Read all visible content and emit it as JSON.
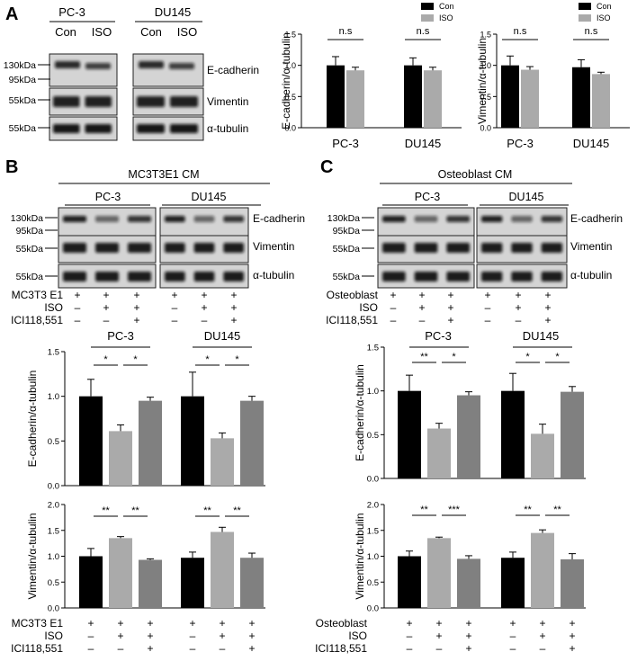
{
  "panels": {
    "A": "A",
    "B": "B",
    "C": "C"
  },
  "blot_A": {
    "cell_lines": [
      "PC-3",
      "DU145"
    ],
    "lanes": [
      "Con",
      "ISO",
      "Con",
      "ISO"
    ],
    "markers": [
      "130kDa",
      "95kDa",
      "55kDa",
      "55kDa"
    ],
    "proteins": [
      "E-cadherin",
      "Vimentin",
      "α-tubulin"
    ]
  },
  "blot_B": {
    "header": "MC3T3E1 CM",
    "cell_lines": [
      "PC-3",
      "DU145"
    ],
    "markers": [
      "130kDa",
      "95kDa",
      "55kDa",
      "55kDa"
    ],
    "proteins": [
      "E-cadherin",
      "Vimentin",
      "α-tubulin"
    ],
    "conditions": [
      {
        "label": "MC3T3 E1",
        "signs": [
          "+",
          "+",
          "+",
          "+",
          "+",
          "+"
        ]
      },
      {
        "label": "ISO",
        "signs": [
          "–",
          "+",
          "+",
          "–",
          "+",
          "+"
        ]
      },
      {
        "label": "ICI118,551",
        "signs": [
          "–",
          "–",
          "+",
          "–",
          "–",
          "+"
        ]
      }
    ]
  },
  "blot_C": {
    "header": "Osteoblast CM",
    "cell_lines": [
      "PC-3",
      "DU145"
    ],
    "markers": [
      "130kDa",
      "95kDa",
      "55kDa",
      "55kDa"
    ],
    "proteins": [
      "E-cadherin",
      "Vimentin",
      "α-tubulin"
    ],
    "conditions": [
      {
        "label": "Osteoblast",
        "signs": [
          "+",
          "+",
          "+",
          "+",
          "+",
          "+"
        ]
      },
      {
        "label": "ISO",
        "signs": [
          "–",
          "+",
          "+",
          "–",
          "+",
          "+"
        ]
      },
      {
        "label": "ICI118,551",
        "signs": [
          "–",
          "–",
          "+",
          "–",
          "–",
          "+"
        ]
      }
    ]
  },
  "bottom_conditions": {
    "B": [
      {
        "label": "MC3T3 E1",
        "signs": [
          "+",
          "+",
          "+",
          "+",
          "+",
          "+"
        ]
      },
      {
        "label": "ISO",
        "signs": [
          "–",
          "+",
          "+",
          "–",
          "+",
          "+"
        ]
      },
      {
        "label": "ICI118,551",
        "signs": [
          "–",
          "–",
          "+",
          "–",
          "–",
          "+"
        ]
      }
    ],
    "C": [
      {
        "label": "Osteoblast",
        "signs": [
          "+",
          "+",
          "+",
          "+",
          "+",
          "+"
        ]
      },
      {
        "label": "ISO",
        "signs": [
          "–",
          "+",
          "+",
          "–",
          "+",
          "+"
        ]
      },
      {
        "label": "ICI118,551",
        "signs": [
          "–",
          "–",
          "+",
          "–",
          "–",
          "+"
        ]
      }
    ]
  },
  "colors": {
    "con": "#000000",
    "iso": "#aaaaaa",
    "ici": "#808080"
  },
  "chart_data": [
    {
      "id": "A1",
      "type": "bar",
      "ylabel": "E-cadherin/α-tubulin",
      "categories": [
        "PC-3",
        "DU145"
      ],
      "ylim": [
        0,
        1.5
      ],
      "yticks": [
        "0.0",
        "0.5",
        "1.0",
        "1.5"
      ],
      "legend": [
        "Con",
        "ISO"
      ],
      "legend_position": "top-right",
      "series": [
        {
          "name": "Con",
          "values": [
            1.0,
            1.0
          ],
          "errors": [
            0.14,
            0.12
          ]
        },
        {
          "name": "ISO",
          "values": [
            0.92,
            0.92
          ],
          "errors": [
            0.05,
            0.05
          ]
        }
      ],
      "annotations": [
        "n.s",
        "n.s"
      ]
    },
    {
      "id": "A2",
      "type": "bar",
      "ylabel": "Vimentin/α-tubulin",
      "categories": [
        "PC-3",
        "DU145"
      ],
      "ylim": [
        0,
        1.5
      ],
      "yticks": [
        "0.0",
        "0.5",
        "1.0",
        "1.5"
      ],
      "legend": [
        "Con",
        "ISO"
      ],
      "legend_position": "top-right",
      "series": [
        {
          "name": "Con",
          "values": [
            1.0,
            0.97
          ],
          "errors": [
            0.15,
            0.12
          ]
        },
        {
          "name": "ISO",
          "values": [
            0.93,
            0.86
          ],
          "errors": [
            0.05,
            0.03
          ]
        }
      ],
      "annotations": [
        "n.s",
        "n.s"
      ]
    },
    {
      "id": "B1",
      "type": "bar",
      "ylabel": "E-cadherin/α-tubulin",
      "group_titles": [
        "PC-3",
        "DU145"
      ],
      "ylim": [
        0,
        1.5
      ],
      "yticks": [
        "0.0",
        "0.5",
        "1.0",
        "1.5"
      ],
      "values": [
        1.0,
        0.61,
        0.95,
        1.0,
        0.53,
        0.95
      ],
      "errors": [
        0.19,
        0.07,
        0.04,
        0.27,
        0.06,
        0.05
      ],
      "annotations": [
        "*",
        "*",
        "*",
        "*"
      ]
    },
    {
      "id": "B2",
      "type": "bar",
      "ylabel": "Vimentin/α-tubulin",
      "ylim": [
        0,
        2.0
      ],
      "yticks": [
        "0.0",
        "0.5",
        "1.0",
        "1.5",
        "2.0"
      ],
      "values": [
        1.0,
        1.35,
        0.93,
        0.97,
        1.47,
        0.97
      ],
      "errors": [
        0.15,
        0.03,
        0.02,
        0.11,
        0.09,
        0.09
      ],
      "annotations": [
        "**",
        "**",
        "**",
        "**"
      ]
    },
    {
      "id": "C1",
      "type": "bar",
      "ylabel": "E-cadherin/α-tubulin",
      "group_titles": [
        "PC-3",
        "DU145"
      ],
      "ylim": [
        0,
        1.5
      ],
      "yticks": [
        "0.0",
        "0.5",
        "1.0",
        "1.5"
      ],
      "values": [
        1.0,
        0.57,
        0.95,
        1.0,
        0.51,
        0.99
      ],
      "errors": [
        0.18,
        0.06,
        0.04,
        0.2,
        0.11,
        0.06
      ],
      "annotations": [
        "**",
        "*",
        "*",
        "*"
      ]
    },
    {
      "id": "C2",
      "type": "bar",
      "ylabel": "Vimentin/α-tubulin",
      "ylim": [
        0,
        2.0
      ],
      "yticks": [
        "0.0",
        "0.5",
        "1.0",
        "1.5",
        "2.0"
      ],
      "values": [
        1.0,
        1.35,
        0.95,
        0.97,
        1.45,
        0.94
      ],
      "errors": [
        0.1,
        0.02,
        0.06,
        0.11,
        0.06,
        0.11
      ],
      "annotations": [
        "**",
        "***",
        "**",
        "**"
      ]
    }
  ]
}
